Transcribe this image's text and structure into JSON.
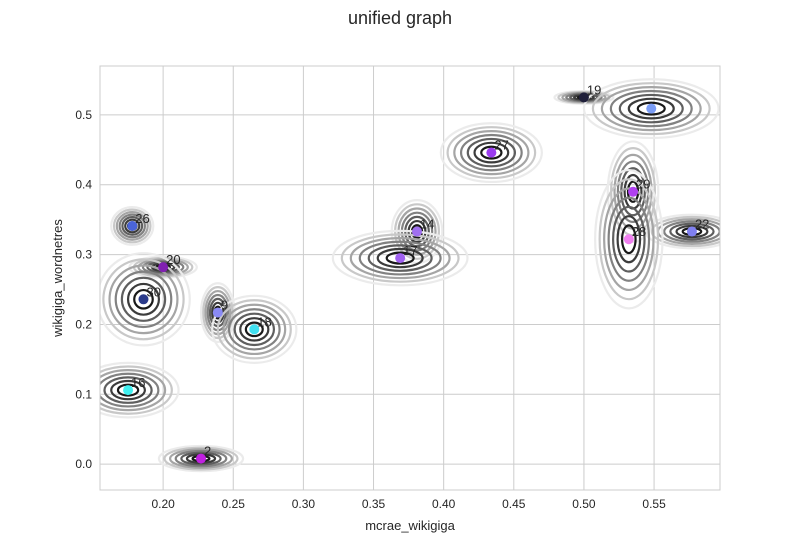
{
  "chart_data": {
    "type": "scatter",
    "title": "unified graph",
    "xlabel": "mcrae_wikigiga",
    "ylabel": "wikigiga_wordnetres",
    "xlim": [
      0.155,
      0.597
    ],
    "ylim": [
      -0.037,
      0.57
    ],
    "xticks": [
      "0.20",
      "0.25",
      "0.30",
      "0.35",
      "0.40",
      "0.45",
      "0.50",
      "0.55"
    ],
    "yticks": [
      "0.0",
      "0.1",
      "0.2",
      "0.3",
      "0.4",
      "0.5"
    ],
    "grid": true,
    "points": [
      {
        "label": "19",
        "x": 0.5,
        "y": 0.525,
        "color": "#1f1f3a",
        "sx": 0.007,
        "sy": 0.003
      },
      {
        "label": "",
        "x": 0.548,
        "y": 0.509,
        "color": "#7a9cf5",
        "sx": 0.016,
        "sy": 0.014
      },
      {
        "label": "27",
        "x": 0.434,
        "y": 0.446,
        "color": "#9b3cf0",
        "sx": 0.012,
        "sy": 0.014
      },
      {
        "label": "29",
        "x": 0.535,
        "y": 0.39,
        "color": "#b040f0",
        "sx": 0.006,
        "sy": 0.024
      },
      {
        "label": "26",
        "x": 0.178,
        "y": 0.341,
        "color": "#4a64d8",
        "sx": 0.005,
        "sy": 0.009
      },
      {
        "label": "14",
        "x": 0.381,
        "y": 0.333,
        "color": "#a070f0",
        "sx": 0.006,
        "sy": 0.015
      },
      {
        "label": "22",
        "x": 0.577,
        "y": 0.333,
        "color": "#8080f0",
        "sx": 0.011,
        "sy": 0.008
      },
      {
        "label": "28",
        "x": 0.532,
        "y": 0.322,
        "color": "#f080f0",
        "sx": 0.008,
        "sy": 0.033
      },
      {
        "label": "17",
        "x": 0.369,
        "y": 0.295,
        "color": "#a060f0",
        "sx": 0.016,
        "sy": 0.013
      },
      {
        "label": "20",
        "x": 0.2,
        "y": 0.282,
        "color": "#8020b0",
        "sx": 0.008,
        "sy": 0.005
      },
      {
        "label": "30",
        "x": 0.186,
        "y": 0.236,
        "color": "#2a3a8a",
        "sx": 0.011,
        "sy": 0.022
      },
      {
        "label": "9",
        "x": 0.239,
        "y": 0.217,
        "color": "#8a8af5",
        "sx": 0.004,
        "sy": 0.014
      },
      {
        "label": "18",
        "x": 0.265,
        "y": 0.193,
        "color": "#40e0f0",
        "sx": 0.01,
        "sy": 0.016
      },
      {
        "label": "16",
        "x": 0.175,
        "y": 0.106,
        "color": "#40f0f0",
        "sx": 0.012,
        "sy": 0.013
      },
      {
        "label": "2",
        "x": 0.227,
        "y": 0.008,
        "color": "#c020e0",
        "sx": 0.01,
        "sy": 0.006
      }
    ]
  }
}
